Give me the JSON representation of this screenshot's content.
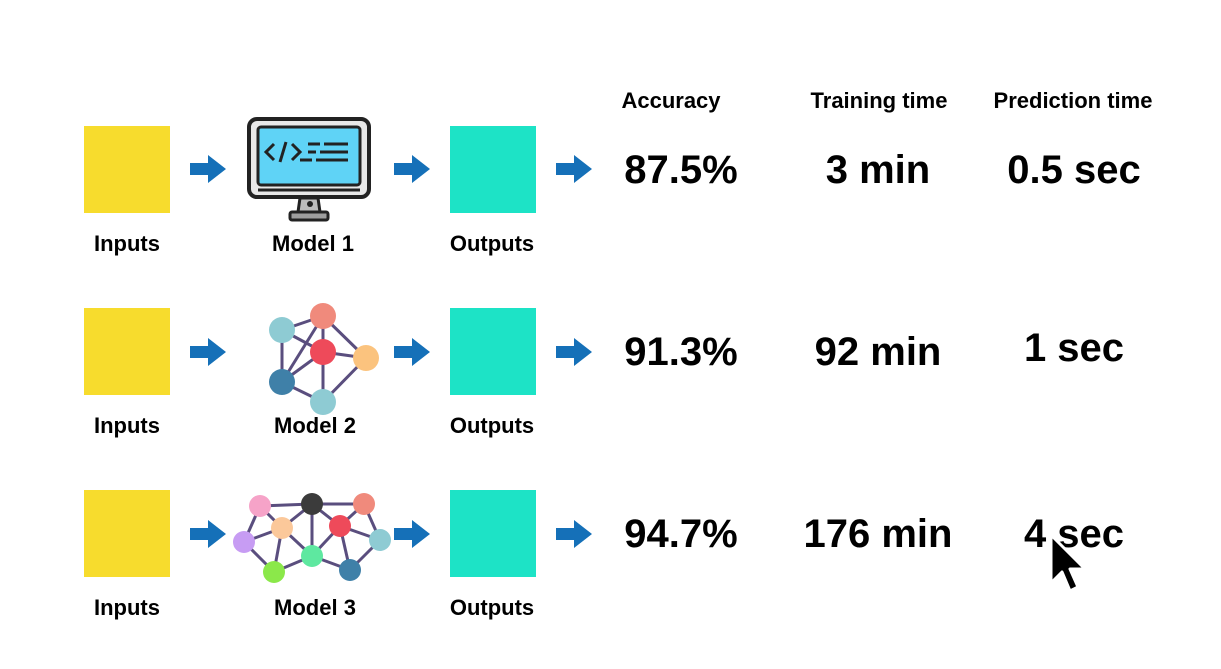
{
  "headers": {
    "accuracy": "Accuracy",
    "training_time": "Training time",
    "prediction_time": "Prediction time"
  },
  "rows": [
    {
      "input_label": "Inputs",
      "model_label": "Model 1",
      "output_label": "Outputs",
      "model_icon": "computer-code-icon",
      "accuracy": "87.5%",
      "training_time": "3 min",
      "prediction_time": "0.5 sec"
    },
    {
      "input_label": "Inputs",
      "model_label": "Model 2",
      "output_label": "Outputs",
      "model_icon": "small-neural-network-icon",
      "accuracy": "91.3%",
      "training_time": "92 min",
      "prediction_time": "1 sec"
    },
    {
      "input_label": "Inputs",
      "model_label": "Model 3",
      "output_label": "Outputs",
      "model_icon": "large-neural-network-icon",
      "accuracy": "94.7%",
      "training_time": "176 min",
      "prediction_time": "4 sec"
    }
  ],
  "colors": {
    "inputs": "#f7dc2d",
    "outputs": "#1de3c6",
    "arrow": "#1570b8"
  },
  "cursor_icon": "mouse-pointer-icon"
}
